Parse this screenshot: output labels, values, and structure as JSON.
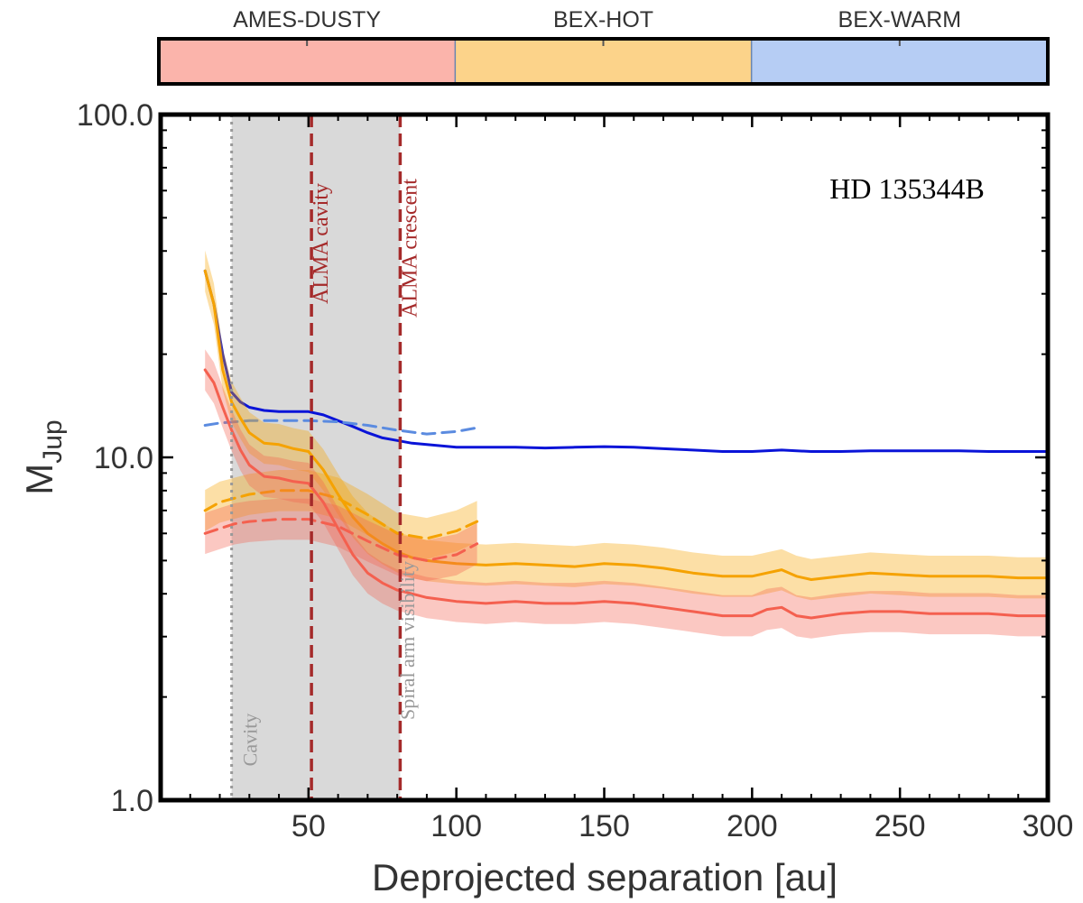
{
  "chart_data": {
    "type": "line",
    "title": "HD 135344B",
    "xlabel": "Deprojected separation [au]",
    "ylabel_main": "M",
    "ylabel_sub": "Jup",
    "xlim": [
      0,
      300
    ],
    "ylim": [
      1.0,
      100.0
    ],
    "yscale": "log",
    "x_ticks": [
      50,
      100,
      150,
      200,
      250,
      300
    ],
    "x_tick_labels": [
      "50",
      "100",
      "150",
      "200",
      "250",
      "300"
    ],
    "y_ticks": [
      1.0,
      10.0,
      100.0
    ],
    "y_tick_labels": [
      "1.0",
      "10.0",
      "100.0"
    ],
    "model_bar": [
      {
        "name": "AMES-DUSTY",
        "color": "#fbb4ab"
      },
      {
        "name": "BEX-HOT",
        "color": "#fcd38a"
      },
      {
        "name": "BEX-WARM",
        "color": "#b6cdf4"
      }
    ],
    "shaded_region": {
      "x_start": 24,
      "x_end": 81,
      "color": "#d9d9d9"
    },
    "vertical_lines": [
      {
        "x": 24,
        "label": "Cavity",
        "style": "dotted",
        "color": "#999999"
      },
      {
        "x": 51,
        "label": "ALMA cavity",
        "style": "dashed",
        "color": "#a52a2a"
      },
      {
        "x": 81,
        "label": "ALMA crescent",
        "style": "dashed",
        "color": "#a52a2a"
      }
    ],
    "annotations": [
      {
        "text": "Spiral arm visibility",
        "x": 90
      }
    ],
    "series": [
      {
        "name": "BEX-WARM",
        "style": "solid",
        "color": "#0a14d8",
        "band": null,
        "x": [
          15,
          18,
          21,
          24,
          27,
          30,
          35,
          40,
          45,
          50,
          55,
          60,
          65,
          70,
          75,
          80,
          85,
          90,
          95,
          100,
          110,
          120,
          130,
          140,
          150,
          160,
          170,
          180,
          190,
          200,
          210,
          220,
          230,
          240,
          250,
          260,
          270,
          280,
          290,
          300
        ],
        "y": [
          35,
          28,
          20,
          15.5,
          14.5,
          14.0,
          13.7,
          13.6,
          13.6,
          13.6,
          13.3,
          12.8,
          12.3,
          11.8,
          11.4,
          11.2,
          11.0,
          10.9,
          10.8,
          10.7,
          10.7,
          10.7,
          10.65,
          10.7,
          10.75,
          10.7,
          10.6,
          10.5,
          10.4,
          10.4,
          10.5,
          10.4,
          10.4,
          10.45,
          10.45,
          10.45,
          10.45,
          10.4,
          10.4,
          10.4
        ]
      },
      {
        "name": "BEX-WARM (dashed)",
        "style": "dashed",
        "color": "#5b8be0",
        "band": null,
        "x": [
          15,
          20,
          25,
          30,
          40,
          50,
          60,
          70,
          80,
          90,
          100,
          107
        ],
        "y": [
          12.4,
          12.6,
          12.7,
          12.8,
          12.8,
          12.8,
          12.7,
          12.4,
          12.0,
          11.7,
          11.9,
          12.2
        ]
      },
      {
        "name": "BEX-HOT",
        "style": "solid",
        "color": "#f5a201",
        "band": 0.06,
        "x": [
          15,
          18,
          21,
          24,
          27,
          30,
          35,
          40,
          45,
          50,
          55,
          60,
          65,
          70,
          75,
          80,
          85,
          90,
          95,
          100,
          110,
          120,
          130,
          140,
          150,
          160,
          170,
          180,
          190,
          200,
          205,
          210,
          215,
          220,
          230,
          240,
          250,
          260,
          270,
          280,
          290,
          300
        ],
        "y": [
          35,
          28,
          18,
          14.5,
          13.0,
          11.8,
          11.0,
          10.9,
          10.6,
          10.4,
          9.2,
          7.8,
          6.7,
          6.0,
          5.6,
          5.3,
          5.1,
          5.0,
          4.95,
          4.9,
          4.85,
          4.9,
          4.85,
          4.8,
          4.9,
          4.85,
          4.75,
          4.6,
          4.5,
          4.5,
          4.6,
          4.7,
          4.5,
          4.4,
          4.5,
          4.6,
          4.55,
          4.5,
          4.5,
          4.5,
          4.45,
          4.45
        ]
      },
      {
        "name": "BEX-HOT (dashed)",
        "style": "dashed",
        "color": "#f5a201",
        "band": 0.06,
        "x": [
          15,
          20,
          25,
          30,
          40,
          50,
          60,
          70,
          80,
          90,
          100,
          107
        ],
        "y": [
          7.0,
          7.4,
          7.6,
          7.8,
          8.0,
          8.0,
          7.6,
          6.8,
          6.0,
          5.8,
          6.1,
          6.5
        ]
      },
      {
        "name": "AMES-DUSTY",
        "style": "solid",
        "color": "#f4604f",
        "band": 0.06,
        "x": [
          15,
          18,
          21,
          24,
          27,
          30,
          35,
          40,
          45,
          50,
          55,
          60,
          65,
          70,
          75,
          80,
          85,
          90,
          95,
          100,
          110,
          120,
          130,
          140,
          150,
          160,
          170,
          180,
          190,
          200,
          205,
          210,
          215,
          220,
          230,
          240,
          250,
          260,
          270,
          280,
          290,
          300
        ],
        "y": [
          18,
          16.5,
          14.0,
          12.0,
          10.5,
          9.5,
          8.8,
          8.7,
          8.5,
          8.4,
          7.4,
          6.2,
          5.2,
          4.6,
          4.3,
          4.1,
          4.0,
          3.9,
          3.85,
          3.8,
          3.75,
          3.8,
          3.75,
          3.75,
          3.8,
          3.75,
          3.65,
          3.55,
          3.45,
          3.45,
          3.6,
          3.65,
          3.45,
          3.4,
          3.5,
          3.55,
          3.55,
          3.5,
          3.5,
          3.5,
          3.45,
          3.45
        ]
      },
      {
        "name": "AMES-DUSTY (dashed)",
        "style": "dashed",
        "color": "#f4604f",
        "band": 0.06,
        "x": [
          15,
          20,
          25,
          30,
          40,
          50,
          60,
          70,
          80,
          90,
          100,
          107
        ],
        "y": [
          6.0,
          6.2,
          6.4,
          6.5,
          6.6,
          6.6,
          6.3,
          5.7,
          5.2,
          5.0,
          5.2,
          5.6
        ]
      }
    ]
  }
}
